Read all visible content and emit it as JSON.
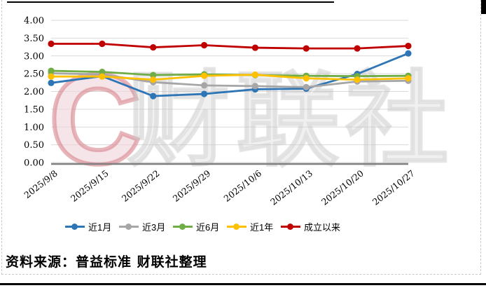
{
  "source_note": "资料来源：普益标准 财联社整理",
  "watermark": {
    "letter": "C",
    "text": "财联社"
  },
  "chart_data": {
    "type": "line",
    "title": "",
    "xlabel": "",
    "ylabel": "",
    "categories": [
      "2025/9/8",
      "2025/9/15",
      "2025/9/22",
      "2025/9/29",
      "2025/10/6",
      "2025/10/13",
      "2025/10/20",
      "2025/10/27"
    ],
    "series": [
      {
        "name": "近1月",
        "color": "#2E75B6",
        "values": [
          2.24,
          2.43,
          1.87,
          1.93,
          2.06,
          2.08,
          2.49,
          3.07
        ]
      },
      {
        "name": "近3月",
        "color": "#A6A6A6",
        "values": [
          2.51,
          2.48,
          2.26,
          2.17,
          2.15,
          2.12,
          2.28,
          2.3
        ]
      },
      {
        "name": "近6月",
        "color": "#70AD47",
        "values": [
          2.58,
          2.55,
          2.46,
          2.48,
          2.46,
          2.44,
          2.43,
          2.44
        ]
      },
      {
        "name": "近1年",
        "color": "#FFC000",
        "values": [
          2.42,
          2.42,
          2.33,
          2.44,
          2.47,
          2.37,
          2.33,
          2.37
        ]
      },
      {
        "name": "成立以来",
        "color": "#C00000",
        "values": [
          3.34,
          3.34,
          3.24,
          3.3,
          3.23,
          3.21,
          3.21,
          3.28
        ]
      }
    ],
    "ylim": [
      0,
      4
    ],
    "y_step": 0.5,
    "y_ticks": [
      "0.00",
      "0.50",
      "1.00",
      "1.50",
      "2.00",
      "2.50",
      "3.00",
      "3.50",
      "4.00"
    ],
    "grid": true,
    "gridline_color": "#D9D9D9",
    "axis_color": "#808080",
    "legend_position": "bottom"
  }
}
